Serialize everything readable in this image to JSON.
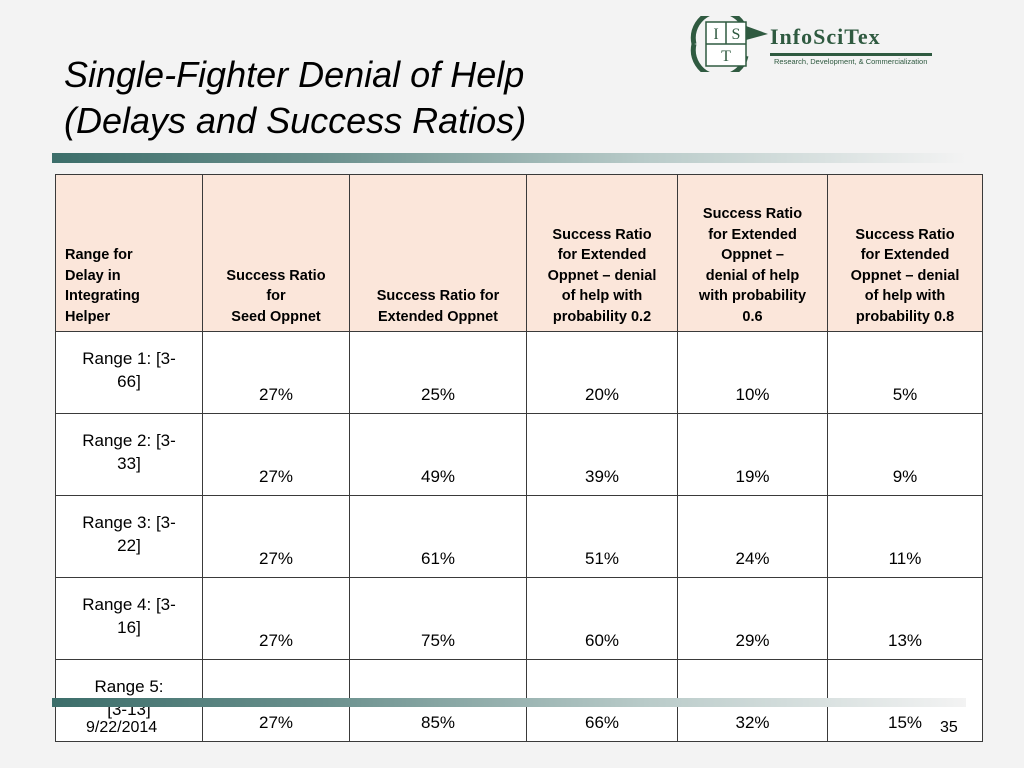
{
  "title": {
    "line1": "Single-Fighter Denial of Help",
    "line2": "(Delays and Success Ratios)"
  },
  "logo": {
    "letters": [
      "I",
      "S",
      "T"
    ],
    "name": "InfoSciTex",
    "tagline": "Research, Development, & Commercialization",
    "color": "#2f5a40"
  },
  "table": {
    "headers": [
      "Range for\nDelay in\nIntegrating\nHelper",
      "Success Ratio\nfor\nSeed Oppnet",
      "Success Ratio for\nExtended Oppnet",
      "Success Ratio\nfor Extended\nOppnet – denial\nof help with\nprobability 0.2",
      "Success Ratio\nfor Extended\nOppnet –\ndenial of help\nwith probability\n0.6",
      "Success Ratio\nfor Extended\nOppnet – denial\nof help with\nprobability 0.8"
    ],
    "rows": [
      [
        "Range 1: [3-\n66]",
        "27%",
        "25%",
        "20%",
        "10%",
        "5%"
      ],
      [
        "Range 2: [3-\n33]",
        "27%",
        "49%",
        "39%",
        "19%",
        "9%"
      ],
      [
        "Range 3: [3-\n22]",
        "27%",
        "61%",
        "51%",
        "24%",
        "11%"
      ],
      [
        "Range 4: [3-\n16]",
        "27%",
        "75%",
        "60%",
        "29%",
        "13%"
      ],
      [
        "Range 5:\n[3-13]",
        "27%",
        "85%",
        "66%",
        "32%",
        "15%"
      ]
    ],
    "header_bg": "#fbe6da"
  },
  "footer": {
    "date": "9/22/2014",
    "page": "35"
  }
}
